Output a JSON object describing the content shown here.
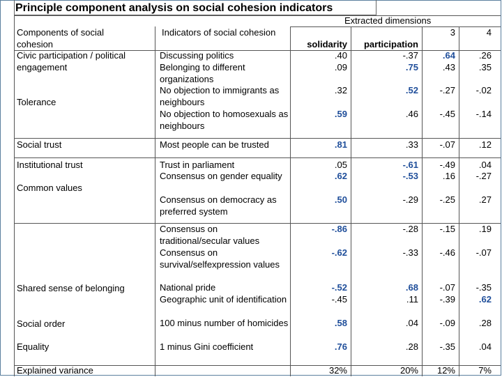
{
  "title": "Principle component analysis on social cohesion indicators",
  "header": {
    "components": "Components of social cohesion",
    "indicators": "Indicators of social cohesion",
    "extracted": "Extracted dimensions",
    "col1": "solidarity",
    "col2": "participation",
    "col3": "3",
    "col4": "4"
  },
  "components": [
    "Civic participation / political engagement",
    "Tolerance",
    "Social trust",
    "Institutional trust",
    "Common values",
    "Shared sense of belonging",
    "Social order",
    "Equality",
    "Explained variance"
  ],
  "indicators": [
    "Discussing politics",
    "Belonging to different organizations",
    "No objection to immigrants as neighbours",
    "No objection to homosexuals as neighbours",
    "Most people can be trusted",
    "Trust in parliament",
    "Consensus  on gender equality",
    "Consensus on democracy as preferred system",
    "Consensus on traditional/secular values",
    "Consensus on survival/selfexpression values",
    "National pride",
    "Geographic unit of identification",
    "100 minus number of homicides",
    "1 minus Gini coefficient"
  ],
  "values": [
    [
      ".40",
      "-.37",
      ".64",
      ".26"
    ],
    [
      ".09",
      ".75",
      ".43",
      ".35"
    ],
    [
      ".32",
      ".52",
      "-.27",
      "-.02"
    ],
    [
      ".59",
      ".46",
      "-.45",
      "-.14"
    ],
    [
      ".81",
      ".33",
      "-.07",
      ".12"
    ],
    [
      ".05",
      "-.61",
      "-.49",
      ".04"
    ],
    [
      ".62",
      "-.53",
      ".16",
      "-.27"
    ],
    [
      ".50",
      "-.29",
      "-.25",
      ".27"
    ],
    [
      "-.86",
      "-.28",
      "-.15",
      ".19"
    ],
    [
      "-.62",
      "-.33",
      "-.46",
      "-.07"
    ],
    [
      "-.52",
      ".68",
      "-.07",
      "-.35"
    ],
    [
      "-.45",
      ".11",
      "-.39",
      ".62"
    ],
    [
      ".58",
      ".04",
      "-.09",
      ".28"
    ],
    [
      ".76",
      ".28",
      "-.35",
      ".04"
    ]
  ],
  "highlight": [
    [
      false,
      false,
      true,
      false
    ],
    [
      false,
      true,
      false,
      false
    ],
    [
      false,
      true,
      false,
      false
    ],
    [
      true,
      false,
      false,
      false
    ],
    [
      true,
      false,
      false,
      false
    ],
    [
      false,
      true,
      false,
      false
    ],
    [
      true,
      true,
      false,
      false
    ],
    [
      true,
      false,
      false,
      false
    ],
    [
      true,
      false,
      false,
      false
    ],
    [
      true,
      false,
      false,
      false
    ],
    [
      true,
      true,
      false,
      false
    ],
    [
      false,
      false,
      false,
      true
    ],
    [
      true,
      false,
      false,
      false
    ],
    [
      true,
      false,
      false,
      false
    ]
  ],
  "explained_variance": [
    "32%",
    "20%",
    "12%",
    "7%"
  ],
  "colors": {
    "highlight": "#1f4e9a",
    "frame": "#5b7f9e"
  }
}
